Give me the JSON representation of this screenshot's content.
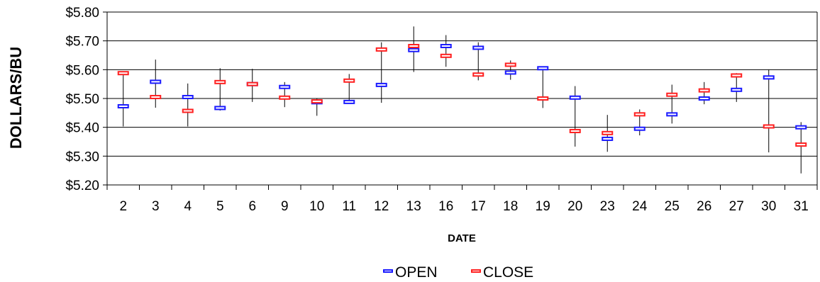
{
  "chart_data": {
    "type": "ohlc",
    "xlabel": "DATE",
    "ylabel": "DOLLARS/BU",
    "ylim": [
      5.2,
      5.8
    ],
    "yticks": [
      5.2,
      5.3,
      5.4,
      5.5,
      5.6,
      5.7,
      5.8
    ],
    "ytick_labels": [
      "$5.20",
      "$5.30",
      "$5.40",
      "$5.50",
      "$5.60",
      "$5.70",
      "$5.80"
    ],
    "grid": true,
    "legend_placement": "bottom-center",
    "categories": [
      "2",
      "3",
      "4",
      "5",
      "6",
      "9",
      "10",
      "11",
      "12",
      "13",
      "16",
      "17",
      "18",
      "19",
      "20",
      "23",
      "24",
      "25",
      "26",
      "27",
      "30",
      "31"
    ],
    "series": [
      {
        "name": "OPEN",
        "color": "#1a1aff",
        "values": [
          5.473,
          5.558,
          5.505,
          5.467,
          5.55,
          5.54,
          5.487,
          5.488,
          5.547,
          5.668,
          5.682,
          5.676,
          5.59,
          5.605,
          5.503,
          5.36,
          5.395,
          5.445,
          5.5,
          5.53,
          5.573,
          5.4
        ]
      },
      {
        "name": "CLOSE",
        "color": "#ff2020",
        "values": [
          5.588,
          5.505,
          5.457,
          5.557,
          5.55,
          5.503,
          5.49,
          5.562,
          5.67,
          5.682,
          5.648,
          5.583,
          5.617,
          5.5,
          5.387,
          5.38,
          5.445,
          5.513,
          5.528,
          5.58,
          5.403,
          5.34
        ]
      }
    ],
    "high": [
      5.59,
      5.635,
      5.552,
      5.605,
      5.603,
      5.557,
      5.5,
      5.585,
      5.695,
      5.75,
      5.72,
      5.695,
      5.632,
      5.608,
      5.543,
      5.443,
      5.462,
      5.548,
      5.557,
      5.588,
      5.6,
      5.418
    ],
    "low": [
      5.403,
      5.468,
      5.403,
      5.458,
      5.488,
      5.47,
      5.44,
      5.485,
      5.485,
      5.592,
      5.61,
      5.563,
      5.565,
      5.467,
      5.333,
      5.315,
      5.372,
      5.413,
      5.48,
      5.488,
      5.313,
      5.24
    ]
  }
}
